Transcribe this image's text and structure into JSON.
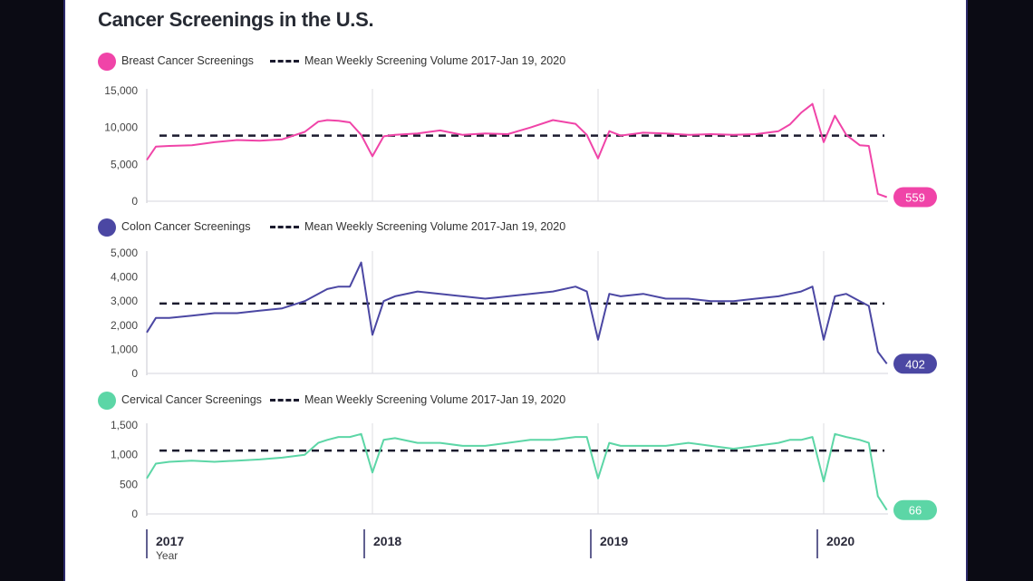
{
  "title": "Cancer Screenings in the U.S.",
  "mean_label": "Mean Weekly Screening Volume 2017-Jan 19, 2020",
  "x_axis": {
    "years": [
      "2017",
      "2018",
      "2019",
      "2020"
    ],
    "label": "Year"
  },
  "chart_data": [
    {
      "type": "line",
      "title": "Breast Cancer Screenings",
      "color": "#f044a8",
      "yticks": [
        "15,000",
        "10,000",
        "5,000",
        "0"
      ],
      "ylim": [
        0,
        15000
      ],
      "mean": 8900,
      "end_value": "559",
      "x": [
        2017.0,
        2017.04,
        2017.1,
        2017.2,
        2017.3,
        2017.4,
        2017.5,
        2017.6,
        2017.7,
        2017.76,
        2017.8,
        2017.85,
        2017.9,
        2017.95,
        2018.0,
        2018.05,
        2018.1,
        2018.2,
        2018.3,
        2018.4,
        2018.5,
        2018.6,
        2018.7,
        2018.8,
        2018.9,
        2018.95,
        2019.0,
        2019.05,
        2019.1,
        2019.2,
        2019.3,
        2019.4,
        2019.5,
        2019.6,
        2019.7,
        2019.8,
        2019.85,
        2019.9,
        2019.95,
        2020.0,
        2020.05,
        2020.1,
        2020.16,
        2020.2,
        2020.24,
        2020.28
      ],
      "values": [
        5600,
        7400,
        7500,
        7600,
        8000,
        8300,
        8200,
        8400,
        9400,
        10800,
        11000,
        10900,
        10700,
        9000,
        6100,
        8800,
        9000,
        9200,
        9600,
        9000,
        9200,
        9100,
        10000,
        11000,
        10500,
        9000,
        5800,
        9500,
        8900,
        9300,
        9200,
        9000,
        9100,
        9000,
        9100,
        9500,
        10400,
        12000,
        13200,
        8000,
        11600,
        9000,
        7600,
        7500,
        1000,
        559
      ]
    },
    {
      "type": "line",
      "title": "Colon Cancer Screenings",
      "color": "#4b47a3",
      "yticks": [
        "5,000",
        "4,000",
        "3,000",
        "2,000",
        "1,000",
        "0"
      ],
      "ylim": [
        0,
        5000
      ],
      "mean": 2900,
      "end_value": "402",
      "x": [
        2017.0,
        2017.04,
        2017.1,
        2017.2,
        2017.3,
        2017.4,
        2017.5,
        2017.6,
        2017.7,
        2017.76,
        2017.8,
        2017.85,
        2017.9,
        2017.95,
        2018.0,
        2018.05,
        2018.1,
        2018.2,
        2018.3,
        2018.4,
        2018.5,
        2018.6,
        2018.7,
        2018.8,
        2018.9,
        2018.95,
        2019.0,
        2019.05,
        2019.1,
        2019.2,
        2019.3,
        2019.4,
        2019.5,
        2019.6,
        2019.7,
        2019.8,
        2019.85,
        2019.9,
        2019.95,
        2020.0,
        2020.05,
        2020.1,
        2020.16,
        2020.2,
        2020.24,
        2020.28
      ],
      "values": [
        1700,
        2300,
        2300,
        2400,
        2500,
        2500,
        2600,
        2700,
        3000,
        3300,
        3500,
        3600,
        3600,
        4600,
        1600,
        3000,
        3200,
        3400,
        3300,
        3200,
        3100,
        3200,
        3300,
        3400,
        3600,
        3400,
        1400,
        3300,
        3200,
        3300,
        3100,
        3100,
        3000,
        3000,
        3100,
        3200,
        3300,
        3400,
        3600,
        1400,
        3200,
        3300,
        3000,
        2800,
        900,
        402
      ]
    },
    {
      "type": "line",
      "title": "Cervical Cancer Screenings",
      "color": "#5cd6a6",
      "yticks": [
        "1,500",
        "1,000",
        "500",
        "0"
      ],
      "ylim": [
        0,
        1500
      ],
      "mean": 1070,
      "end_value": "66",
      "x": [
        2017.0,
        2017.04,
        2017.1,
        2017.2,
        2017.3,
        2017.4,
        2017.5,
        2017.6,
        2017.7,
        2017.76,
        2017.8,
        2017.85,
        2017.9,
        2017.95,
        2018.0,
        2018.05,
        2018.1,
        2018.2,
        2018.3,
        2018.4,
        2018.5,
        2018.6,
        2018.7,
        2018.8,
        2018.9,
        2018.95,
        2019.0,
        2019.05,
        2019.1,
        2019.2,
        2019.3,
        2019.4,
        2019.5,
        2019.6,
        2019.7,
        2019.8,
        2019.85,
        2019.9,
        2019.95,
        2020.0,
        2020.05,
        2020.1,
        2020.16,
        2020.2,
        2020.24,
        2020.28
      ],
      "values": [
        600,
        850,
        880,
        900,
        880,
        900,
        920,
        950,
        1000,
        1200,
        1250,
        1300,
        1300,
        1350,
        700,
        1250,
        1280,
        1200,
        1200,
        1150,
        1150,
        1200,
        1250,
        1250,
        1300,
        1300,
        600,
        1200,
        1150,
        1150,
        1150,
        1200,
        1150,
        1100,
        1150,
        1200,
        1250,
        1250,
        1300,
        550,
        1350,
        1300,
        1250,
        1200,
        300,
        66
      ]
    }
  ]
}
